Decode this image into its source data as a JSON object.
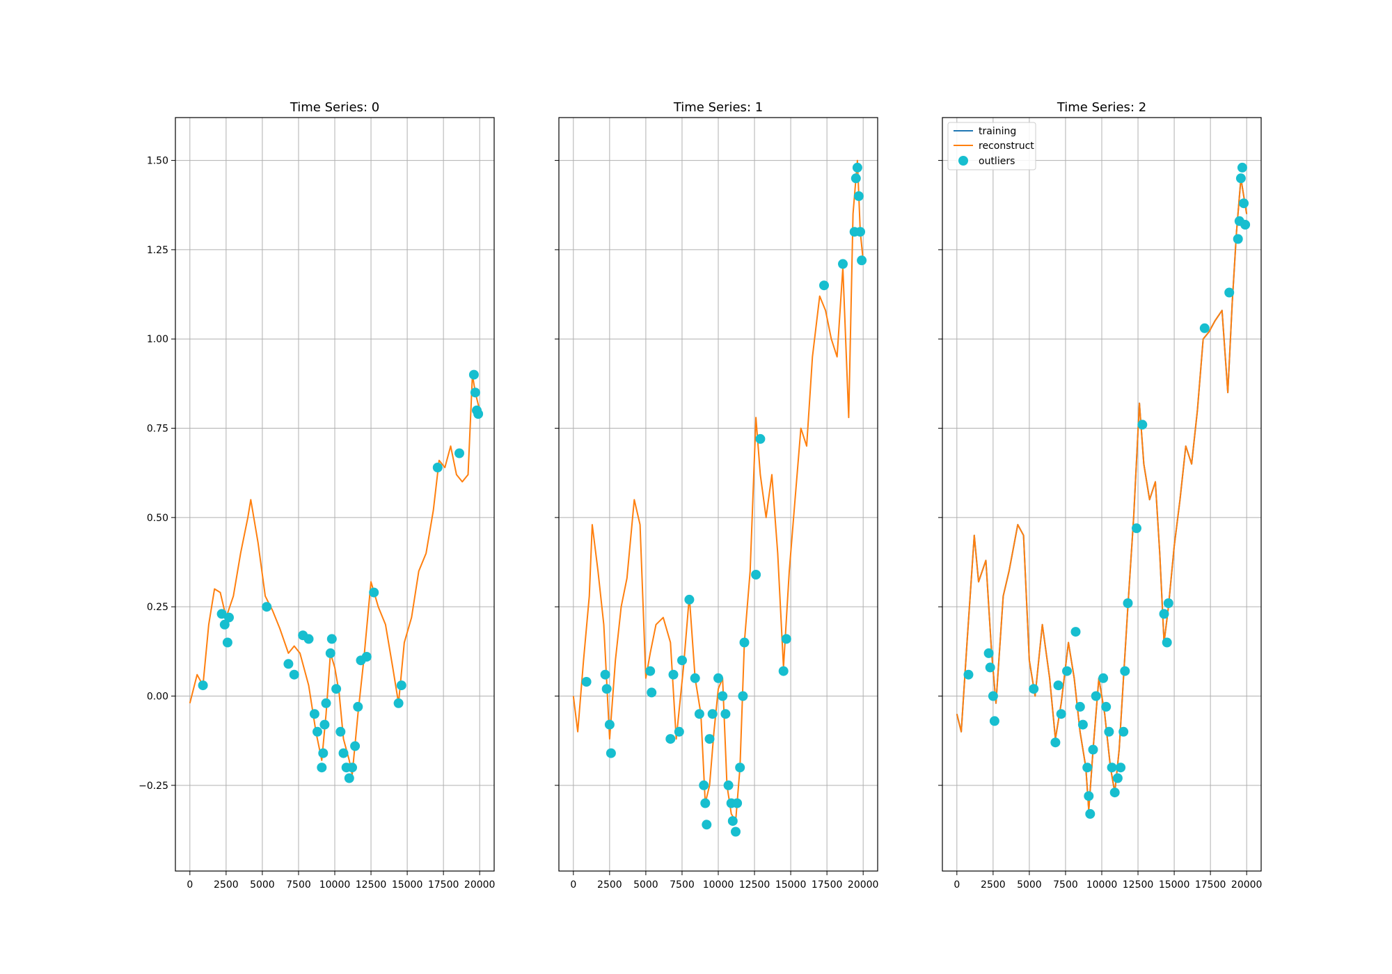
{
  "figure": {
    "background": "#ffffff"
  },
  "style": {
    "training_color": "#1f77b4",
    "reconstruct_color": "#ff7f0e",
    "outlier_color": "#17becf",
    "grid_color": "#b0b0b0"
  },
  "legend": {
    "placement": "upper-left of third panel",
    "items": [
      {
        "label": "training",
        "marker": "line"
      },
      {
        "label": "reconstruct",
        "marker": "line"
      },
      {
        "label": "outliers",
        "marker": "circle"
      }
    ]
  },
  "chart_data": [
    {
      "type": "line",
      "title": "Time Series: 0",
      "xlim": [
        -1000,
        21000
      ],
      "ylim": [
        -0.49,
        1.62
      ],
      "grid": true,
      "xticks": [
        0,
        2500,
        5000,
        7500,
        10000,
        12500,
        15000,
        17500,
        20000
      ],
      "xtick_labels": [
        "0",
        "2500",
        "5000",
        "7500",
        "10000",
        "12500",
        "15000",
        "17500",
        "20000"
      ],
      "yticks": [
        -0.25,
        0.0,
        0.25,
        0.5,
        0.75,
        1.0,
        1.25,
        1.5
      ],
      "ytick_labels": [
        "−0.25",
        "0.00",
        "0.25",
        "0.50",
        "0.75",
        "1.00",
        "1.25",
        "1.50"
      ],
      "series": [
        {
          "name": "reconstruct",
          "x": [
            0,
            500,
            900,
            1300,
            1700,
            2100,
            2500,
            3000,
            3500,
            4000,
            4200,
            4700,
            5200,
            5700,
            6200,
            6800,
            7200,
            7600,
            8200,
            8700,
            9100,
            9400,
            9700,
            10000,
            10300,
            10600,
            11000,
            11200,
            11600,
            12000,
            12500,
            13000,
            13500,
            14000,
            14400,
            14800,
            15300,
            15800,
            16300,
            16800,
            17200,
            17600,
            18000,
            18400,
            18800,
            19200,
            19500,
            19700,
            20000
          ],
          "y": [
            -0.02,
            0.06,
            0.03,
            0.2,
            0.3,
            0.29,
            0.22,
            0.28,
            0.4,
            0.5,
            0.55,
            0.43,
            0.28,
            0.24,
            0.19,
            0.12,
            0.14,
            0.12,
            0.03,
            -0.1,
            -0.18,
            -0.05,
            0.12,
            0.08,
            0.01,
            -0.12,
            -0.18,
            -0.22,
            -0.05,
            0.1,
            0.32,
            0.25,
            0.2,
            0.08,
            -0.02,
            0.15,
            0.22,
            0.35,
            0.4,
            0.52,
            0.66,
            0.64,
            0.7,
            0.62,
            0.6,
            0.62,
            0.9,
            0.85,
            0.8
          ]
        },
        {
          "name": "outliers",
          "points": [
            [
              900,
              0.03
            ],
            [
              2200,
              0.23
            ],
            [
              2400,
              0.2
            ],
            [
              2600,
              0.15
            ],
            [
              2700,
              0.22
            ],
            [
              5300,
              0.25
            ],
            [
              6800,
              0.09
            ],
            [
              7200,
              0.06
            ],
            [
              7800,
              0.17
            ],
            [
              8200,
              0.16
            ],
            [
              8600,
              -0.05
            ],
            [
              8800,
              -0.1
            ],
            [
              9100,
              -0.2
            ],
            [
              9200,
              -0.16
            ],
            [
              9300,
              -0.08
            ],
            [
              9400,
              -0.02
            ],
            [
              9700,
              0.12
            ],
            [
              9800,
              0.16
            ],
            [
              10100,
              0.02
            ],
            [
              10400,
              -0.1
            ],
            [
              10600,
              -0.16
            ],
            [
              10800,
              -0.2
            ],
            [
              11000,
              -0.23
            ],
            [
              11200,
              -0.2
            ],
            [
              11400,
              -0.14
            ],
            [
              11600,
              -0.03
            ],
            [
              11800,
              0.1
            ],
            [
              12200,
              0.11
            ],
            [
              12700,
              0.29
            ],
            [
              14400,
              -0.02
            ],
            [
              14600,
              0.03
            ],
            [
              17100,
              0.64
            ],
            [
              18600,
              0.68
            ],
            [
              19600,
              0.9
            ],
            [
              19700,
              0.85
            ],
            [
              19800,
              0.8
            ],
            [
              19900,
              0.79
            ]
          ]
        }
      ]
    },
    {
      "type": "line",
      "title": "Time Series: 1",
      "xlim": [
        -1000,
        21000
      ],
      "ylim": [
        -0.49,
        1.62
      ],
      "grid": true,
      "xticks": [
        0,
        2500,
        5000,
        7500,
        10000,
        12500,
        15000,
        17500,
        20000
      ],
      "xtick_labels": [
        "0",
        "2500",
        "5000",
        "7500",
        "10000",
        "12500",
        "15000",
        "17500",
        "20000"
      ],
      "yticks": [
        -0.25,
        0.0,
        0.25,
        0.5,
        0.75,
        1.0,
        1.25,
        1.5
      ],
      "ytick_labels": [],
      "series": [
        {
          "name": "reconstruct",
          "x": [
            0,
            300,
            700,
            1100,
            1300,
            1700,
            2100,
            2500,
            2900,
            3300,
            3700,
            4200,
            4600,
            5000,
            5300,
            5700,
            6200,
            6700,
            7100,
            7600,
            8000,
            8400,
            8800,
            9100,
            9400,
            9700,
            10000,
            10300,
            10600,
            10900,
            11200,
            11500,
            11800,
            12200,
            12600,
            12900,
            13300,
            13700,
            14100,
            14500,
            14900,
            15300,
            15700,
            16100,
            16500,
            17000,
            17400,
            17800,
            18200,
            18600,
            19000,
            19300,
            19600,
            19800,
            20000
          ],
          "y": [
            0.0,
            -0.1,
            0.1,
            0.28,
            0.48,
            0.35,
            0.2,
            -0.12,
            0.1,
            0.25,
            0.33,
            0.55,
            0.48,
            0.05,
            0.12,
            0.2,
            0.22,
            0.15,
            -0.12,
            0.08,
            0.28,
            0.05,
            -0.05,
            -0.3,
            -0.25,
            -0.1,
            0.02,
            0.05,
            -0.25,
            -0.33,
            -0.35,
            -0.2,
            0.15,
            0.35,
            0.78,
            0.62,
            0.5,
            0.62,
            0.4,
            0.08,
            0.35,
            0.55,
            0.75,
            0.7,
            0.95,
            1.12,
            1.08,
            1.0,
            0.95,
            1.2,
            0.78,
            1.35,
            1.5,
            1.3,
            1.22
          ]
        },
        {
          "name": "outliers",
          "points": [
            [
              900,
              0.04
            ],
            [
              2200,
              0.06
            ],
            [
              2300,
              0.02
            ],
            [
              2500,
              -0.08
            ],
            [
              2600,
              -0.16
            ],
            [
              5300,
              0.07
            ],
            [
              5400,
              0.01
            ],
            [
              6700,
              -0.12
            ],
            [
              6900,
              0.06
            ],
            [
              7300,
              -0.1
            ],
            [
              7500,
              0.1
            ],
            [
              8000,
              0.27
            ],
            [
              8400,
              0.05
            ],
            [
              8700,
              -0.05
            ],
            [
              9000,
              -0.25
            ],
            [
              9100,
              -0.3
            ],
            [
              9200,
              -0.36
            ],
            [
              9400,
              -0.12
            ],
            [
              9600,
              -0.05
            ],
            [
              10000,
              0.05
            ],
            [
              10300,
              0.0
            ],
            [
              10500,
              -0.05
            ],
            [
              10700,
              -0.25
            ],
            [
              10900,
              -0.3
            ],
            [
              11000,
              -0.35
            ],
            [
              11200,
              -0.38
            ],
            [
              11300,
              -0.3
            ],
            [
              11500,
              -0.2
            ],
            [
              11700,
              0.0
            ],
            [
              11800,
              0.15
            ],
            [
              12600,
              0.34
            ],
            [
              12900,
              0.72
            ],
            [
              14500,
              0.07
            ],
            [
              14700,
              0.16
            ],
            [
              17300,
              1.15
            ],
            [
              18600,
              1.21
            ],
            [
              19400,
              1.3
            ],
            [
              19500,
              1.45
            ],
            [
              19600,
              1.48
            ],
            [
              19700,
              1.4
            ],
            [
              19800,
              1.3
            ],
            [
              19900,
              1.22
            ]
          ]
        }
      ]
    },
    {
      "type": "line",
      "title": "Time Series: 2",
      "xlim": [
        -1000,
        21000
      ],
      "ylim": [
        -0.49,
        1.62
      ],
      "grid": true,
      "xticks": [
        0,
        2500,
        5000,
        7500,
        10000,
        12500,
        15000,
        17500,
        20000
      ],
      "xtick_labels": [
        "0",
        "2500",
        "5000",
        "7500",
        "10000",
        "12500",
        "15000",
        "17500",
        "20000"
      ],
      "yticks": [
        -0.25,
        0.0,
        0.25,
        0.5,
        0.75,
        1.0,
        1.25,
        1.5
      ],
      "ytick_labels": [],
      "series": [
        {
          "name": "training",
          "x": [
            0,
            300,
            700,
            1200,
            1500,
            2000,
            2400,
            2700,
            3200,
            3600,
            4200,
            4600,
            5000,
            5400,
            5900,
            6400,
            6800,
            7200,
            7700,
            8100,
            8500,
            8900,
            9100,
            9400,
            9800,
            10200,
            10600,
            10900,
            11200,
            11500,
            11800,
            12200,
            12600,
            12900,
            13300,
            13700,
            14000,
            14300,
            14600,
            15000,
            15400,
            15800,
            16200,
            16600,
            17000,
            17400,
            17800,
            18300,
            18700,
            19000,
            19300,
            19600,
            19800,
            20000
          ],
          "y": [
            -0.05,
            -0.1,
            0.15,
            0.45,
            0.32,
            0.38,
            0.12,
            -0.02,
            0.28,
            0.35,
            0.48,
            0.45,
            0.1,
            0.0,
            0.2,
            0.05,
            -0.12,
            -0.02,
            0.15,
            0.05,
            -0.1,
            -0.2,
            -0.32,
            -0.15,
            0.05,
            -0.05,
            -0.2,
            -0.27,
            -0.15,
            0.05,
            0.25,
            0.5,
            0.82,
            0.65,
            0.55,
            0.6,
            0.4,
            0.15,
            0.25,
            0.42,
            0.55,
            0.7,
            0.65,
            0.8,
            1.0,
            1.02,
            1.05,
            1.08,
            0.85,
            1.1,
            1.3,
            1.45,
            1.4,
            1.35
          ]
        },
        {
          "name": "reconstruct",
          "x": [
            0,
            300,
            700,
            1200,
            1500,
            2000,
            2400,
            2700,
            3200,
            3600,
            4200,
            4600,
            5000,
            5400,
            5900,
            6400,
            6800,
            7200,
            7700,
            8100,
            8500,
            8900,
            9100,
            9400,
            9800,
            10200,
            10600,
            10900,
            11200,
            11500,
            11800,
            12200,
            12600,
            12900,
            13300,
            13700,
            14000,
            14300,
            14600,
            15000,
            15400,
            15800,
            16200,
            16600,
            17000,
            17400,
            17800,
            18300,
            18700,
            19000,
            19300,
            19600,
            19800,
            20000
          ],
          "y": [
            -0.05,
            -0.1,
            0.15,
            0.45,
            0.32,
            0.38,
            0.12,
            -0.02,
            0.28,
            0.35,
            0.48,
            0.45,
            0.1,
            0.0,
            0.2,
            0.05,
            -0.12,
            -0.02,
            0.15,
            0.05,
            -0.1,
            -0.2,
            -0.32,
            -0.15,
            0.05,
            -0.05,
            -0.2,
            -0.27,
            -0.15,
            0.05,
            0.25,
            0.5,
            0.82,
            0.65,
            0.55,
            0.6,
            0.4,
            0.15,
            0.25,
            0.42,
            0.55,
            0.7,
            0.65,
            0.8,
            1.0,
            1.02,
            1.05,
            1.08,
            0.85,
            1.1,
            1.3,
            1.45,
            1.4,
            1.35
          ]
        },
        {
          "name": "outliers",
          "points": [
            [
              800,
              0.06
            ],
            [
              2200,
              0.12
            ],
            [
              2300,
              0.08
            ],
            [
              2500,
              0.0
            ],
            [
              2600,
              -0.07
            ],
            [
              5300,
              0.02
            ],
            [
              6800,
              -0.13
            ],
            [
              7000,
              0.03
            ],
            [
              7200,
              -0.05
            ],
            [
              7600,
              0.07
            ],
            [
              8200,
              0.18
            ],
            [
              8500,
              -0.03
            ],
            [
              8700,
              -0.08
            ],
            [
              9000,
              -0.2
            ],
            [
              9100,
              -0.28
            ],
            [
              9200,
              -0.33
            ],
            [
              9400,
              -0.15
            ],
            [
              9600,
              0.0
            ],
            [
              10100,
              0.05
            ],
            [
              10300,
              -0.03
            ],
            [
              10500,
              -0.1
            ],
            [
              10700,
              -0.2
            ],
            [
              10900,
              -0.27
            ],
            [
              11100,
              -0.23
            ],
            [
              11300,
              -0.2
            ],
            [
              11500,
              -0.1
            ],
            [
              11600,
              0.07
            ],
            [
              11800,
              0.26
            ],
            [
              12400,
              0.47
            ],
            [
              12800,
              0.76
            ],
            [
              14300,
              0.23
            ],
            [
              14500,
              0.15
            ],
            [
              14600,
              0.26
            ],
            [
              17100,
              1.03
            ],
            [
              18800,
              1.13
            ],
            [
              19400,
              1.28
            ],
            [
              19500,
              1.33
            ],
            [
              19600,
              1.45
            ],
            [
              19700,
              1.48
            ],
            [
              19800,
              1.38
            ],
            [
              19900,
              1.32
            ]
          ]
        }
      ]
    }
  ]
}
